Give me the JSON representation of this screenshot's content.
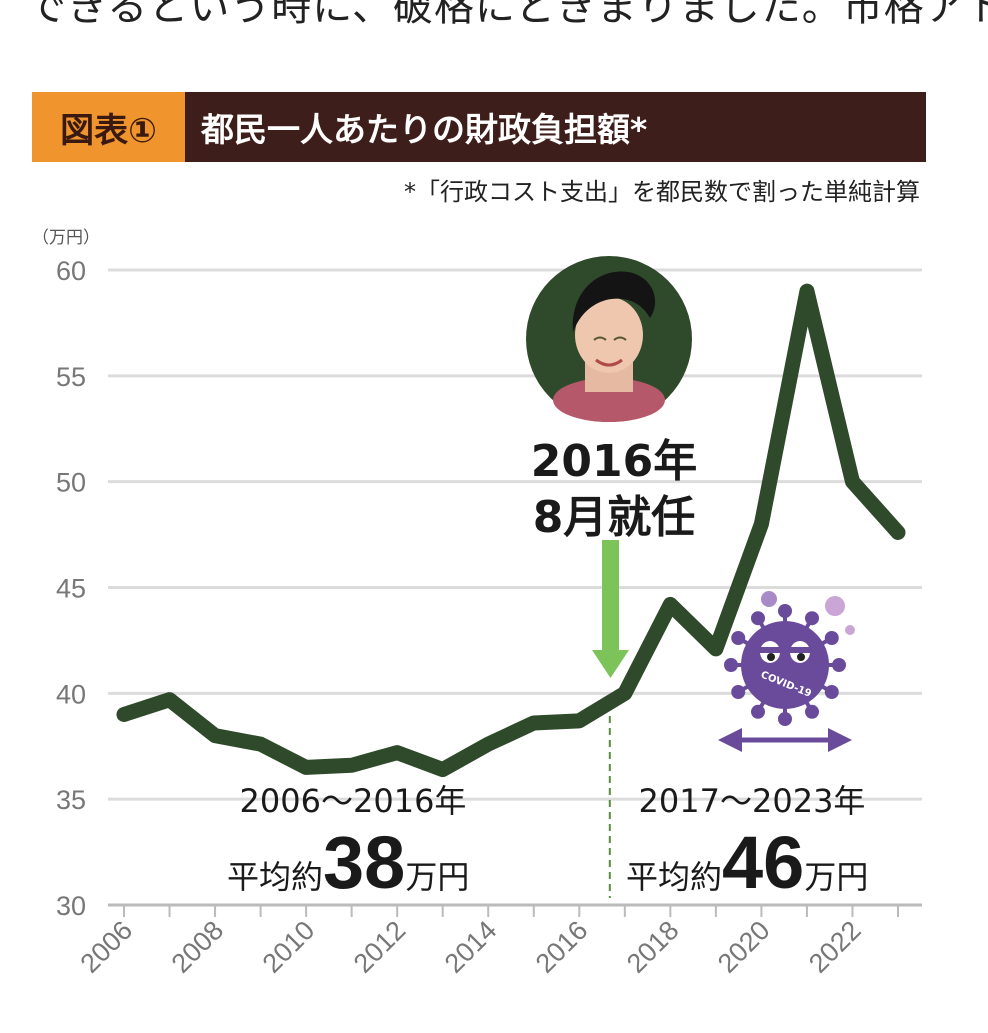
{
  "header": {
    "cut_text": "できるという時に、破格にどきまりました。市格アト",
    "badge": "図表①",
    "title": "都民一人あたりの財政負担額*",
    "note": "*「行政コスト支出」を都民数で割った単純計算"
  },
  "annotations": {
    "inauguration_year": "2016年",
    "inauguration_month": "8月就任",
    "period1_range": "2006〜2016年",
    "period1_prefix": "平均約",
    "period1_value": "38",
    "period1_suffix": "万円",
    "period2_range": "2017〜2023年",
    "period2_prefix": "平均約",
    "period2_value": "46",
    "period2_suffix": "万円",
    "covid_label": "COVID-19"
  },
  "colors": {
    "line": "#2e4a2a",
    "arrow": "#7cc35a",
    "covid": "#6a4b9b",
    "badge": "#f0952d",
    "title_bg": "#3d1e1b"
  },
  "chart_data": {
    "type": "line",
    "title": "都民一人あたりの財政負担額*",
    "ylabel": "（万円）",
    "xlabel": "",
    "x": [
      2006,
      2007,
      2008,
      2009,
      2010,
      2011,
      2012,
      2013,
      2014,
      2015,
      2016,
      2017,
      2018,
      2019,
      2020,
      2021,
      2022,
      2023
    ],
    "values": [
      39.0,
      39.7,
      38.0,
      37.6,
      36.5,
      36.6,
      37.2,
      36.4,
      37.6,
      38.6,
      38.7,
      40.0,
      44.2,
      42.1,
      48.0,
      59.0,
      50.0,
      47.6
    ],
    "ylim": [
      30,
      60
    ],
    "yticks": [
      "30",
      "35",
      "40",
      "45",
      "50",
      "55",
      "60"
    ],
    "xticks": [
      "2006",
      "2008",
      "2010",
      "2012",
      "2014",
      "2016",
      "2018",
      "2020",
      "2022"
    ],
    "grid": true
  }
}
